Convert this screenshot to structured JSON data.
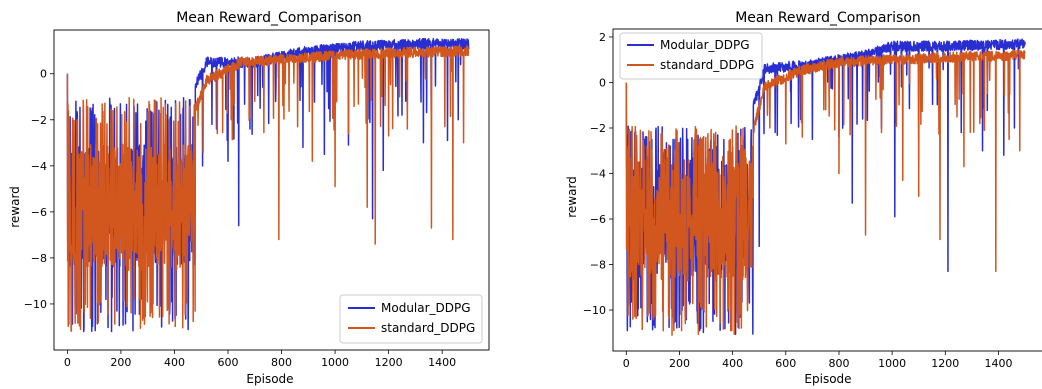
{
  "colors": {
    "modular": "#2a2ed0",
    "standard": "#d2571e",
    "axis": "#000000",
    "legend_border": "#cccccc"
  },
  "chart_data": [
    {
      "type": "line",
      "title": "Mean Reward_Comparison",
      "xlabel": "Episode",
      "ylabel": "reward",
      "xlim": [
        -50,
        1575
      ],
      "ylim": [
        -12.0,
        1.9
      ],
      "xticks": [
        0,
        200,
        400,
        600,
        800,
        1000,
        1200,
        1400
      ],
      "yticks": [
        0,
        -2,
        -4,
        -6,
        -8,
        -10
      ],
      "grid": false,
      "legend_position": "lower-right",
      "series": [
        {
          "name": "Modular_DDPG",
          "color": "#2a2ed0"
        },
        {
          "name": "standard_DDPG",
          "color": "#d2571e"
        }
      ],
      "profile": {
        "early_end": 478,
        "early_high": -1.0,
        "early_low": -11.2,
        "early_mean": -5.8,
        "modular_plateau": [
          [
            480,
            -0.5
          ],
          [
            520,
            0.5
          ],
          [
            700,
            0.5
          ],
          [
            900,
            1.0
          ],
          [
            1100,
            1.2
          ],
          [
            1300,
            1.3
          ],
          [
            1500,
            1.3
          ]
        ],
        "standard_plateau": [
          [
            480,
            -1.5
          ],
          [
            520,
            -0.3
          ],
          [
            650,
            0.5
          ],
          [
            800,
            0.6
          ],
          [
            1000,
            0.8
          ],
          [
            1200,
            0.9
          ],
          [
            1500,
            1.0
          ]
        ],
        "modular_dips": [
          [
            505,
            -4.0
          ],
          [
            540,
            -2.2
          ],
          [
            600,
            -3.8
          ],
          [
            640,
            -6.6
          ],
          [
            720,
            -1.5
          ],
          [
            880,
            -3.2
          ],
          [
            960,
            -3.5
          ],
          [
            1050,
            -3.1
          ],
          [
            1140,
            -6.3
          ],
          [
            1180,
            -4.2
          ],
          [
            1250,
            -1.8
          ],
          [
            1330,
            -3.0
          ],
          [
            1420,
            -2.9
          ],
          [
            1460,
            -2.0
          ]
        ],
        "standard_dips": [
          [
            560,
            -2.6
          ],
          [
            700,
            -1.2
          ],
          [
            790,
            -7.2
          ],
          [
            860,
            -2.3
          ],
          [
            915,
            -3.8
          ],
          [
            1000,
            -4.9
          ],
          [
            1050,
            -2.6
          ],
          [
            1120,
            -5.8
          ],
          [
            1150,
            -7.4
          ],
          [
            1200,
            -2.7
          ],
          [
            1270,
            -2.4
          ],
          [
            1360,
            -6.7
          ],
          [
            1440,
            -7.2
          ],
          [
            1480,
            -3.0
          ]
        ]
      }
    },
    {
      "type": "line",
      "title": "Mean Reward_Comparison",
      "xlabel": "Episode",
      "ylabel": "reward",
      "xlim": [
        -50,
        1575
      ],
      "ylim": [
        -11.8,
        2.35
      ],
      "xticks": [
        0,
        200,
        400,
        600,
        800,
        1000,
        1200,
        1400
      ],
      "yticks": [
        2,
        0,
        -2,
        -4,
        -6,
        -8,
        -10
      ],
      "grid": false,
      "legend_position": "upper-left",
      "series": [
        {
          "name": "Modular_DDPG",
          "color": "#2a2ed0"
        },
        {
          "name": "standard_DDPG",
          "color": "#d2571e"
        }
      ],
      "profile": {
        "early_end": 478,
        "early_high": -1.9,
        "early_low": -11.1,
        "early_mean": -6.0,
        "modular_plateau": [
          [
            480,
            -1.0
          ],
          [
            520,
            0.6
          ],
          [
            700,
            0.8
          ],
          [
            900,
            1.2
          ],
          [
            1000,
            1.6
          ],
          [
            1200,
            1.6
          ],
          [
            1500,
            1.7
          ]
        ],
        "standard_plateau": [
          [
            480,
            -2.0
          ],
          [
            520,
            -0.2
          ],
          [
            650,
            0.5
          ],
          [
            800,
            0.9
          ],
          [
            1000,
            1.0
          ],
          [
            1200,
            1.1
          ],
          [
            1500,
            1.2
          ]
        ],
        "modular_dips": [
          [
            500,
            -7.2
          ],
          [
            560,
            -2.2
          ],
          [
            620,
            -1.8
          ],
          [
            700,
            -2.5
          ],
          [
            800,
            -2.4
          ],
          [
            850,
            -5.3
          ],
          [
            960,
            -2.0
          ],
          [
            1010,
            -5.9
          ],
          [
            1100,
            -2.5
          ],
          [
            1210,
            -8.3
          ],
          [
            1260,
            -2.2
          ],
          [
            1340,
            -3.0
          ],
          [
            1420,
            -3.2
          ],
          [
            1460,
            -2.0
          ]
        ],
        "standard_dips": [
          [
            540,
            -2.0
          ],
          [
            600,
            -2.7
          ],
          [
            750,
            -1.2
          ],
          [
            800,
            -4.0
          ],
          [
            900,
            -6.7
          ],
          [
            960,
            -2.2
          ],
          [
            1040,
            -4.3
          ],
          [
            1100,
            -5.0
          ],
          [
            1180,
            -6.9
          ],
          [
            1270,
            -3.7
          ],
          [
            1330,
            -1.8
          ],
          [
            1390,
            -8.3
          ],
          [
            1440,
            -2.5
          ],
          [
            1480,
            -3.0
          ]
        ]
      }
    }
  ]
}
